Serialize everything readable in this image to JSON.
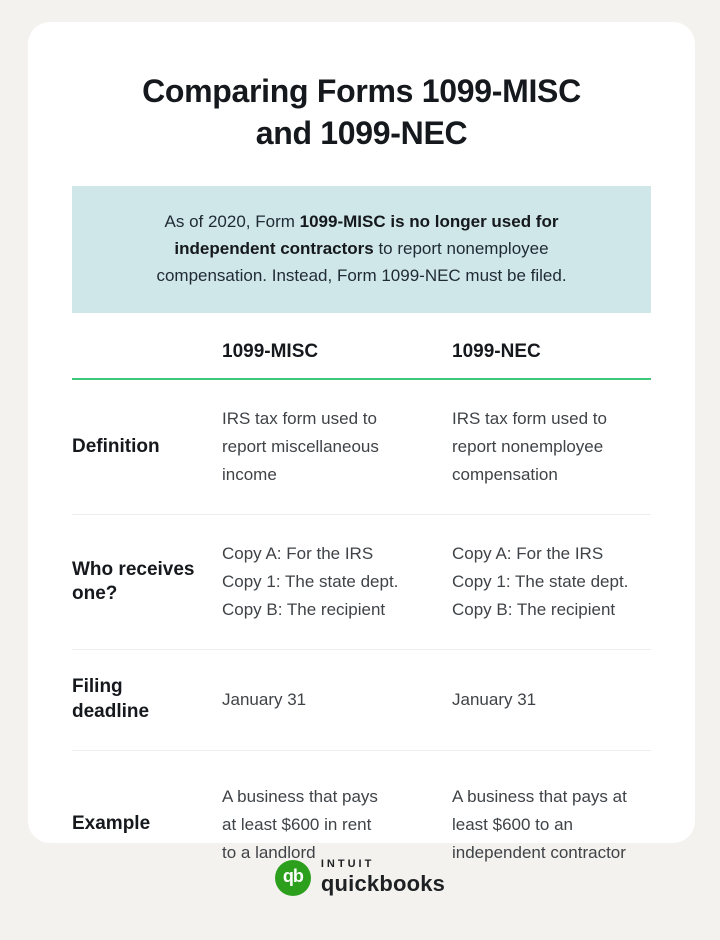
{
  "colors": {
    "page_background": "#f4f2ee",
    "card_background": "#ffffff",
    "callout_background": "#cfe7e9",
    "accent_line": "#3ec879",
    "divider": "#ededed",
    "logo_green": "#2ca01c"
  },
  "title": {
    "line1": "Comparing Forms 1099-MISC",
    "line2": "and 1099-NEC"
  },
  "callout": {
    "text_prefix": "As of 2020, Form ",
    "text_bold": "1099-MISC is no longer used for independent contractors",
    "text_suffix": " to report nonemployee compensation. Instead, Form 1099-NEC must be filed."
  },
  "table": {
    "columns": [
      "1099-MISC",
      "1099-NEC"
    ],
    "rows": [
      {
        "label": [
          "Definition"
        ],
        "misc": [
          "IRS tax form used to",
          "report miscellaneous",
          "income"
        ],
        "nec": [
          "IRS tax form used to",
          "report nonemployee",
          "compensation"
        ]
      },
      {
        "label": [
          "Who receives",
          "one?"
        ],
        "misc": [
          "Copy A: For the IRS",
          "Copy 1: The state dept.",
          "Copy B: The recipient"
        ],
        "nec": [
          "Copy A: For the IRS",
          "Copy 1: The state dept.",
          "Copy B: The recipient"
        ]
      },
      {
        "label": [
          "Filing",
          "deadline"
        ],
        "misc": [
          "January 31"
        ],
        "nec": [
          "January 31"
        ]
      },
      {
        "label": [
          "Example"
        ],
        "misc": [
          "A business that pays",
          "at least $600 in rent",
          "to a landlord"
        ],
        "nec": [
          "A business that pays at",
          "least $600 to an",
          "independent contractor"
        ]
      }
    ]
  },
  "footer": {
    "logo_monogram": "qb",
    "brand_top": "INTUIT",
    "brand_bottom": "quickbooks"
  }
}
